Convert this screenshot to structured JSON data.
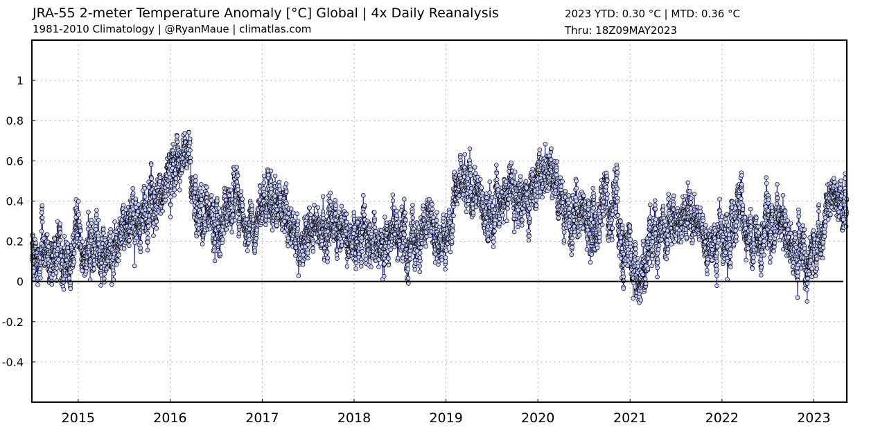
{
  "header": {
    "title": "JRA-55 2-meter Temperature Anomaly [°C] Global | 4x Daily Reanalysis",
    "subtitle": "1981-2010 Climatology | @RyanMaue | climatlas.com",
    "stats": "2023 YTD: 0.30 °C | MTD: 0.36 °C",
    "thru": "Thru: 18Z09MAY2023"
  },
  "chart_data": {
    "type": "line",
    "title": "JRA-55 2-meter Temperature Anomaly [°C] Global | 4x Daily Reanalysis",
    "xlabel": "",
    "ylabel": "",
    "xlim": [
      "2014-07-01",
      "2023-05-12"
    ],
    "ylim": [
      -0.6,
      1.2
    ],
    "yticks": [
      -0.4,
      -0.2,
      0,
      0.2,
      0.4,
      0.6,
      0.8,
      1
    ],
    "ytick_labels": [
      "-0.4",
      "-0.2",
      "0",
      "0.2",
      "0.4",
      "0.6",
      "0.8",
      "1"
    ],
    "xticks": [
      "2015-01-01",
      "2016-01-01",
      "2017-01-01",
      "2018-01-01",
      "2019-01-01",
      "2020-01-01",
      "2021-01-01",
      "2022-01-01",
      "2023-01-01"
    ],
    "xtick_labels": [
      "2015",
      "2016",
      "2017",
      "2018",
      "2019",
      "2020",
      "2021",
      "2022",
      "2023"
    ],
    "grid": true,
    "zero_line": true,
    "colors": {
      "line": "#1a1aa6",
      "marker_fill": "#c8d0ff",
      "marker_edge": "#000000",
      "axis": "#000000",
      "grid": "#9a9a9a"
    },
    "series": [
      {
        "x": [
          "2014-07-01",
          "2014-08-01",
          "2014-09-01",
          "2014-10-01",
          "2014-11-01",
          "2014-12-01",
          "2015-01-01",
          "2015-02-01",
          "2015-03-01",
          "2015-04-01",
          "2015-05-01",
          "2015-06-01",
          "2015-07-01",
          "2015-08-01",
          "2015-09-01",
          "2015-10-01",
          "2015-11-01",
          "2015-12-01",
          "2016-01-01",
          "2016-02-01",
          "2016-03-01",
          "2016-04-01",
          "2016-05-01",
          "2016-06-01",
          "2016-07-01",
          "2016-08-01",
          "2016-09-01",
          "2016-10-01",
          "2016-11-01",
          "2016-12-01",
          "2017-01-01",
          "2017-02-01",
          "2017-03-01",
          "2017-04-01",
          "2017-05-01",
          "2017-06-01",
          "2017-07-01",
          "2017-08-01",
          "2017-09-01",
          "2017-10-01",
          "2017-11-01",
          "2017-12-01",
          "2018-01-01",
          "2018-02-01",
          "2018-03-01",
          "2018-04-01",
          "2018-05-01",
          "2018-06-01",
          "2018-07-01",
          "2018-08-01",
          "2018-09-01",
          "2018-10-01",
          "2018-11-01",
          "2018-12-01",
          "2019-01-01",
          "2019-02-01",
          "2019-03-01",
          "2019-04-01",
          "2019-05-01",
          "2019-06-01",
          "2019-07-01",
          "2019-08-01",
          "2019-09-01",
          "2019-10-01",
          "2019-11-01",
          "2019-12-01",
          "2020-01-01",
          "2020-02-01",
          "2020-03-01",
          "2020-04-01",
          "2020-05-01",
          "2020-06-01",
          "2020-07-01",
          "2020-08-01",
          "2020-09-01",
          "2020-10-01",
          "2020-11-01",
          "2020-12-01",
          "2021-01-01",
          "2021-02-01",
          "2021-03-01",
          "2021-04-01",
          "2021-05-01",
          "2021-06-01",
          "2021-07-01",
          "2021-08-01",
          "2021-09-01",
          "2021-10-01",
          "2021-11-01",
          "2021-12-01",
          "2022-01-01",
          "2022-02-01",
          "2022-03-01",
          "2022-04-01",
          "2022-05-01",
          "2022-06-01",
          "2022-07-01",
          "2022-08-01",
          "2022-09-01",
          "2022-10-01",
          "2022-11-01",
          "2022-12-01",
          "2023-01-01",
          "2023-02-01",
          "2023-03-01",
          "2023-04-01",
          "2023-05-01"
        ],
        "y": [
          0.1,
          0.12,
          0.16,
          0.14,
          0.1,
          0.08,
          0.22,
          0.14,
          0.2,
          0.1,
          0.12,
          0.18,
          0.22,
          0.25,
          0.3,
          0.36,
          0.38,
          0.42,
          0.52,
          0.58,
          0.72,
          0.45,
          0.38,
          0.28,
          0.3,
          0.36,
          0.35,
          0.4,
          0.32,
          0.22,
          0.38,
          0.45,
          0.4,
          0.38,
          0.2,
          0.18,
          0.25,
          0.3,
          0.28,
          0.25,
          0.22,
          0.18,
          0.2,
          0.26,
          0.24,
          0.22,
          0.18,
          0.22,
          0.2,
          0.18,
          0.16,
          0.24,
          0.3,
          0.2,
          0.18,
          0.3,
          0.5,
          0.46,
          0.4,
          0.3,
          0.35,
          0.36,
          0.4,
          0.44,
          0.4,
          0.42,
          0.48,
          0.55,
          0.52,
          0.44,
          0.3,
          0.26,
          0.28,
          0.28,
          0.32,
          0.34,
          0.4,
          0.14,
          0.12,
          0.02,
          0.18,
          0.2,
          0.22,
          0.24,
          0.26,
          0.34,
          0.3,
          0.3,
          0.26,
          0.14,
          0.24,
          0.18,
          0.3,
          0.32,
          0.18,
          0.24,
          0.3,
          0.28,
          0.26,
          0.2,
          0.16,
          0.1,
          0.14,
          0.22,
          0.48,
          0.38,
          0.36
        ]
      }
    ]
  }
}
